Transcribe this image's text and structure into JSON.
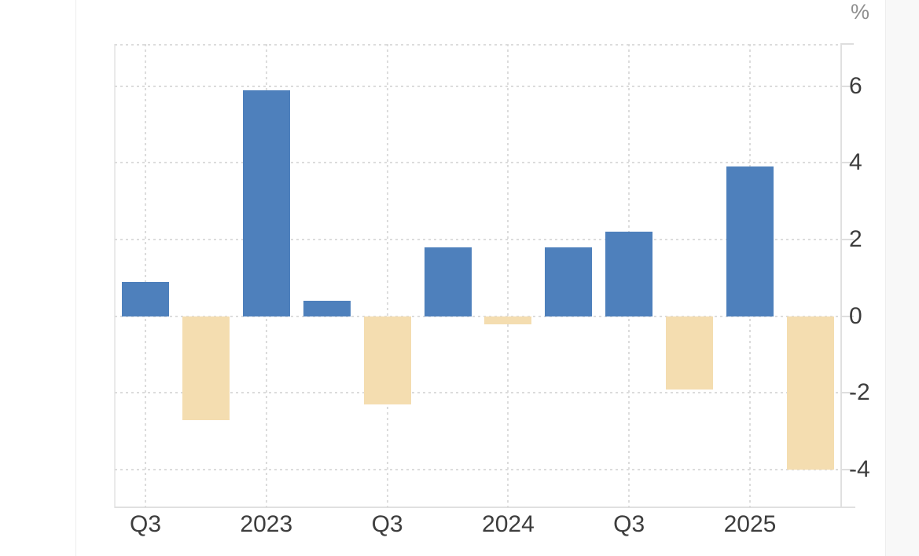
{
  "colors": {
    "positive_bar": "#4e80bc",
    "negative_bar": "#f4ddb0",
    "gridline": "#dcdcdc",
    "axis_line": "#e0e0e0",
    "tick_text": "#3d3d3d",
    "unit_text": "#8f8f8f"
  },
  "chart_data": {
    "type": "bar",
    "title": "",
    "unit": "%",
    "values": [
      0.9,
      -2.7,
      5.9,
      0.4,
      -2.3,
      1.8,
      -0.2,
      1.8,
      2.2,
      -1.9,
      3.9,
      -4.0
    ],
    "x_tick_labels": [
      "Q3",
      "2023",
      "Q3",
      "2024",
      "Q3",
      "2025"
    ],
    "x_tick_bar_indices": [
      0,
      2,
      4,
      6,
      8,
      10
    ],
    "y_tick_labels": [
      "6",
      "4",
      "2",
      "0",
      "-2",
      "-4"
    ],
    "y_tick_values": [
      6,
      4,
      2,
      0,
      -2,
      -4
    ],
    "ylim": [
      -5,
      7.1
    ],
    "grid": "dotted",
    "legend": "none",
    "y_axis_side": "right",
    "positive_color": "#4e80bc",
    "negative_color": "#f4ddb0"
  }
}
